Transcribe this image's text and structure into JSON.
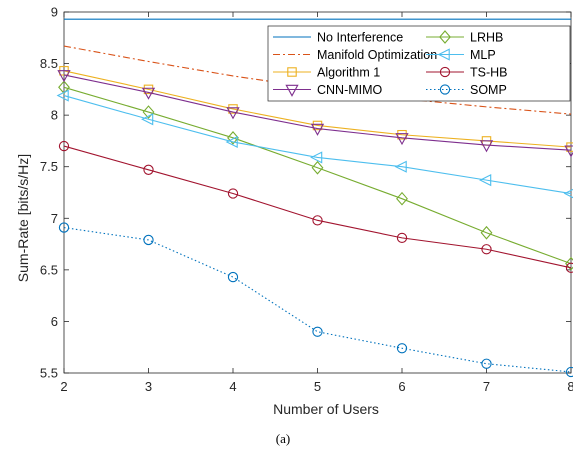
{
  "chart_data": {
    "type": "line",
    "xlabel": "Number of Users",
    "ylabel": "Sum-Rate [bits/s/Hz]",
    "caption": "(a)",
    "xlim": [
      2,
      8
    ],
    "ylim": [
      5.5,
      9
    ],
    "x_ticks": [
      "2",
      "3",
      "4",
      "5",
      "6",
      "7",
      "8"
    ],
    "y_ticks": [
      "5.5",
      "6",
      "6.5",
      "7",
      "7.5",
      "8",
      "8.5",
      "9"
    ],
    "x": [
      2,
      3,
      4,
      5,
      6,
      7,
      8
    ],
    "legend_position": "top-right",
    "grid": false,
    "series": [
      {
        "name": "No Interference",
        "color": "#0072BD",
        "dash": "solid",
        "marker": "none",
        "values": [
          8.93,
          8.93,
          8.93,
          8.93,
          8.93,
          8.93,
          8.93
        ]
      },
      {
        "name": "LRHB",
        "color": "#77AC30",
        "dash": "solid",
        "marker": "diamond",
        "values": [
          8.27,
          8.03,
          7.78,
          7.49,
          7.19,
          6.86,
          6.56
        ]
      },
      {
        "name": "Manifold Optimization",
        "color": "#D95319",
        "dash": "dashdot",
        "marker": "none",
        "values": [
          8.67,
          8.52,
          8.38,
          8.26,
          8.16,
          8.08,
          8.01
        ]
      },
      {
        "name": "MLP",
        "color": "#4DBEEE",
        "dash": "solid",
        "marker": "triangle-left",
        "values": [
          8.19,
          7.96,
          7.74,
          7.59,
          7.5,
          7.37,
          7.24
        ]
      },
      {
        "name": "Algorithm 1",
        "color": "#EDB120",
        "dash": "solid",
        "marker": "square",
        "values": [
          8.43,
          8.25,
          8.06,
          7.9,
          7.81,
          7.75,
          7.69
        ]
      },
      {
        "name": "TS-HB",
        "color": "#A2142F",
        "dash": "solid",
        "marker": "circle",
        "values": [
          7.7,
          7.47,
          7.24,
          6.98,
          6.81,
          6.7,
          6.52
        ]
      },
      {
        "name": "CNN-MIMO",
        "color": "#7E2F8E",
        "dash": "solid",
        "marker": "triangle-down",
        "values": [
          8.39,
          8.22,
          8.03,
          7.87,
          7.78,
          7.71,
          7.66
        ]
      },
      {
        "name": "SOMP",
        "color": "#0072BD",
        "dash": "dotted",
        "marker": "circle",
        "values": [
          6.91,
          6.79,
          6.43,
          5.9,
          5.74,
          5.59,
          5.51
        ]
      }
    ]
  }
}
